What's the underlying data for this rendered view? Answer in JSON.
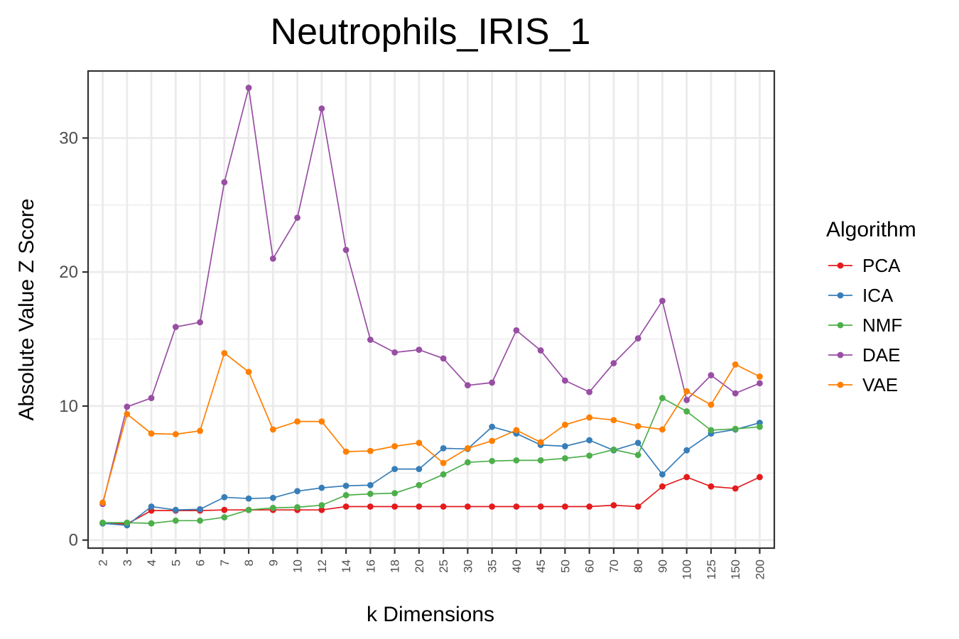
{
  "chart_data": {
    "type": "line",
    "title": "Neutrophils_IRIS_1",
    "xlabel": "k Dimensions",
    "ylabel": "Absolute Value Z Score",
    "categories": [
      "2",
      "3",
      "4",
      "5",
      "6",
      "7",
      "8",
      "9",
      "10",
      "12",
      "14",
      "16",
      "18",
      "20",
      "25",
      "30",
      "35",
      "40",
      "45",
      "50",
      "60",
      "70",
      "80",
      "90",
      "100",
      "125",
      "150",
      "200"
    ],
    "yticks": [
      0,
      10,
      20,
      30
    ],
    "ytick_labels": [
      "0",
      "10",
      "20",
      "30"
    ],
    "ylim": [
      -0.6,
      35
    ],
    "grid": true,
    "legend": {
      "title": "Algorithm",
      "position": "right"
    },
    "series": [
      {
        "name": "PCA",
        "color": "#E41A1C",
        "values": [
          1.25,
          1.2,
          2.2,
          2.2,
          2.2,
          2.25,
          2.25,
          2.25,
          2.25,
          2.25,
          2.5,
          2.5,
          2.5,
          2.5,
          2.5,
          2.5,
          2.5,
          2.5,
          2.5,
          2.5,
          2.5,
          2.6,
          2.5,
          4.0,
          4.7,
          4.0,
          3.85,
          4.7
        ]
      },
      {
        "name": "ICA",
        "color": "#377EB8",
        "values": [
          1.25,
          1.1,
          2.5,
          2.25,
          2.3,
          3.2,
          3.1,
          3.15,
          3.65,
          3.9,
          4.05,
          4.1,
          5.3,
          5.3,
          6.85,
          6.8,
          8.45,
          7.95,
          7.1,
          7.0,
          7.45,
          6.7,
          7.25,
          4.9,
          6.7,
          7.95,
          8.25,
          8.75
        ]
      },
      {
        "name": "NMF",
        "color": "#4DAF4A",
        "values": [
          1.3,
          1.3,
          1.25,
          1.45,
          1.45,
          1.7,
          2.25,
          2.4,
          2.45,
          2.6,
          3.35,
          3.45,
          3.5,
          4.1,
          4.9,
          5.8,
          5.9,
          5.95,
          5.95,
          6.1,
          6.3,
          6.75,
          6.35,
          10.6,
          9.6,
          8.2,
          8.3,
          8.45
        ]
      },
      {
        "name": "DAE",
        "color": "#984EA3",
        "values": [
          2.7,
          9.95,
          10.6,
          15.9,
          16.25,
          26.7,
          33.75,
          21.0,
          24.05,
          32.2,
          21.65,
          14.95,
          14.0,
          14.2,
          13.55,
          11.55,
          11.75,
          15.65,
          14.15,
          11.9,
          11.05,
          13.2,
          15.05,
          17.85,
          10.45,
          12.3,
          10.95,
          11.7
        ]
      },
      {
        "name": "VAE",
        "color": "#FF7F00",
        "values": [
          2.8,
          9.4,
          7.95,
          7.9,
          8.15,
          13.95,
          12.55,
          8.25,
          8.85,
          8.85,
          6.6,
          6.65,
          7.0,
          7.25,
          5.75,
          6.85,
          7.4,
          8.2,
          7.3,
          8.6,
          9.15,
          8.95,
          8.5,
          8.25,
          11.1,
          10.1,
          13.1,
          12.2
        ]
      }
    ]
  }
}
